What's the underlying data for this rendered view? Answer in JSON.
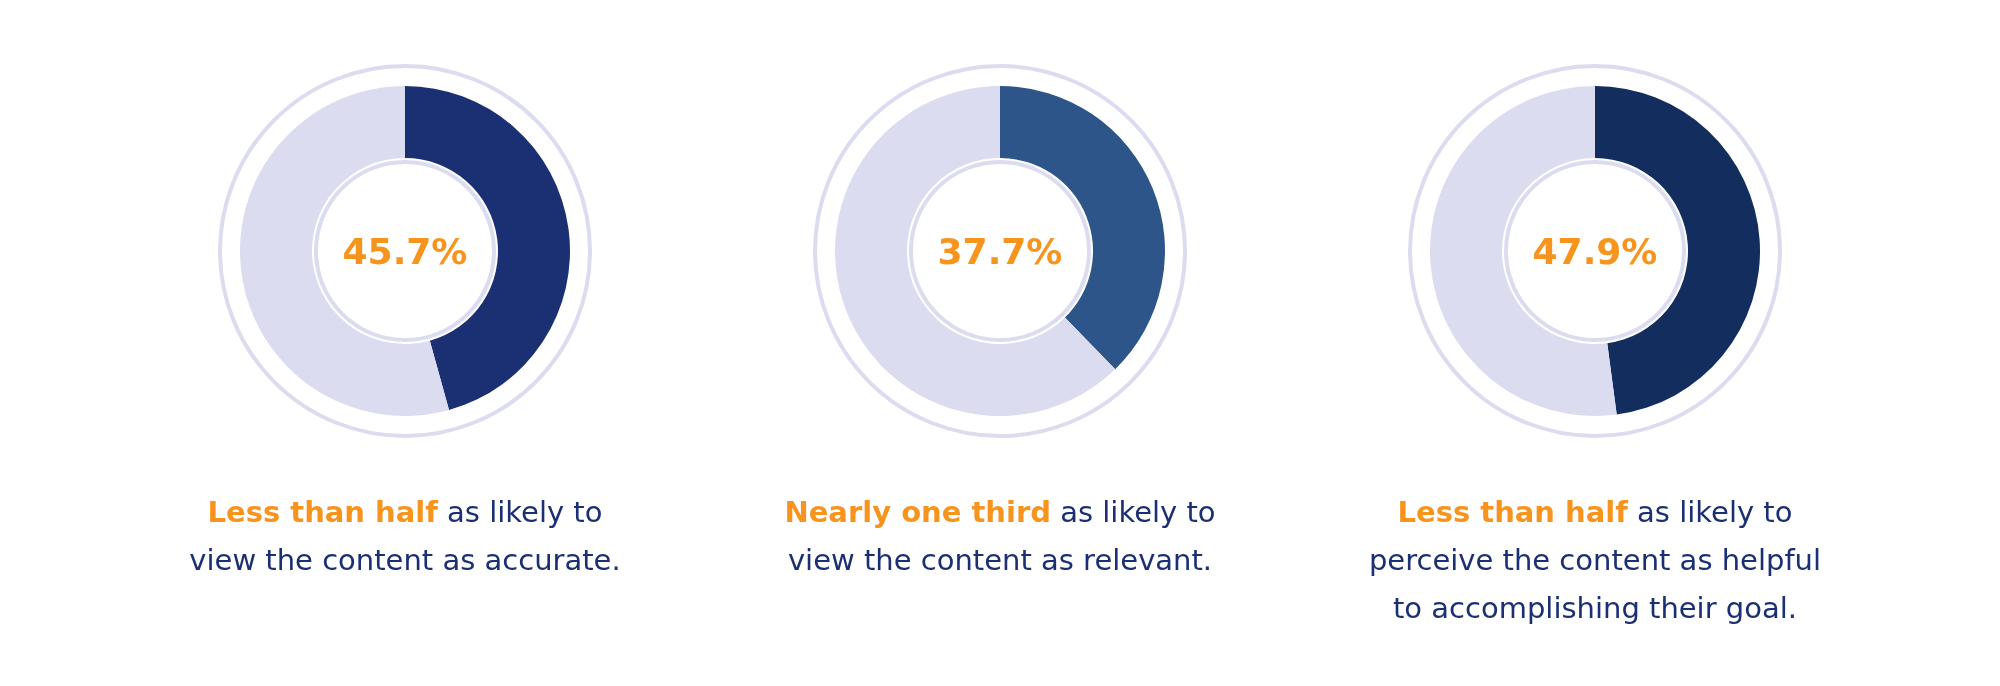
{
  "chart_data": [
    {
      "type": "donut",
      "title": "Less than half",
      "subtitle": "as likely to view the content as accurate.",
      "categories": [
        null,
        null
      ],
      "values": [
        45.7,
        54.3
      ],
      "colors": [
        "#1b2f73",
        "#dcdcf0"
      ],
      "annotations": [
        "45.7%"
      ]
    },
    {
      "type": "donut",
      "title": "Nearly one third",
      "subtitle": "as likely to view the content as relevant.",
      "categories": [
        null,
        null
      ],
      "values": [
        37.7,
        62.3
      ],
      "colors": [
        "#2d5589",
        "#dcdcf0"
      ],
      "annotations": [
        "37.7%"
      ]
    },
    {
      "type": "donut",
      "title": "Less than half",
      "subtitle": "as likely to perceive the content as helpful to accomplishing their goal.",
      "categories": [
        null,
        null
      ],
      "values": [
        47.9,
        52.1
      ],
      "colors": [
        "#132d5e",
        "#dcdcf0"
      ],
      "annotations": [
        "47.9%"
      ]
    }
  ]
}
